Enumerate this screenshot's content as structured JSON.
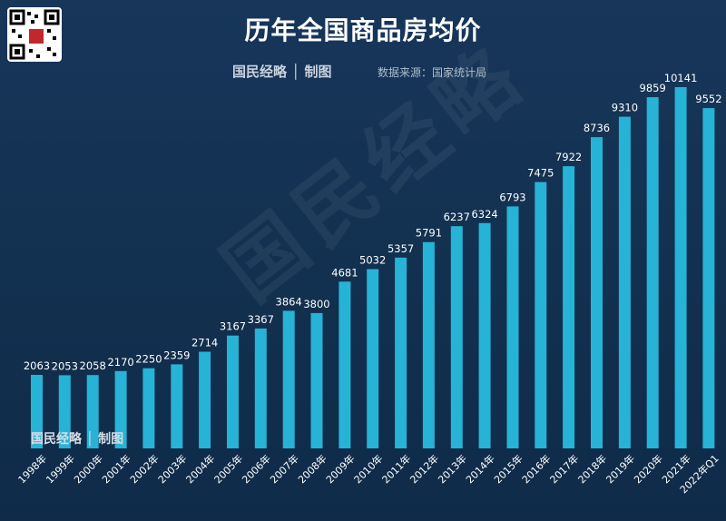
{
  "header": {
    "title": "历年全国商品房均价",
    "brand": "国民经略 │ 制图",
    "source": "数据来源：国家统计局"
  },
  "watermark": "国民经略",
  "bottom_brand": "国民经略 │ 制图",
  "colors": {
    "bar": "#27b3d5",
    "background": "#14304f",
    "text": "#ffffff"
  },
  "chart_data": {
    "type": "bar",
    "title": "历年全国商品房均价",
    "xlabel": "",
    "ylabel": "",
    "ylim": [
      0,
      11000
    ],
    "grid": false,
    "categories": [
      "1998年",
      "1999年",
      "2000年",
      "2001年",
      "2002年",
      "2003年",
      "2004年",
      "2005年",
      "2006年",
      "2007年",
      "2008年",
      "2009年",
      "2010年",
      "2011年",
      "2012年",
      "2013年",
      "2014年",
      "2015年",
      "2016年",
      "2017年",
      "2018年",
      "2019年",
      "2020年",
      "2021年",
      "2022年Q1"
    ],
    "values": [
      2063,
      2053,
      2058,
      2170,
      2250,
      2359,
      2714,
      3167,
      3367,
      3864,
      3800,
      4681,
      5032,
      5357,
      5791,
      6237,
      6324,
      6793,
      7475,
      7922,
      8736,
      9310,
      9859,
      10141,
      9552
    ]
  }
}
